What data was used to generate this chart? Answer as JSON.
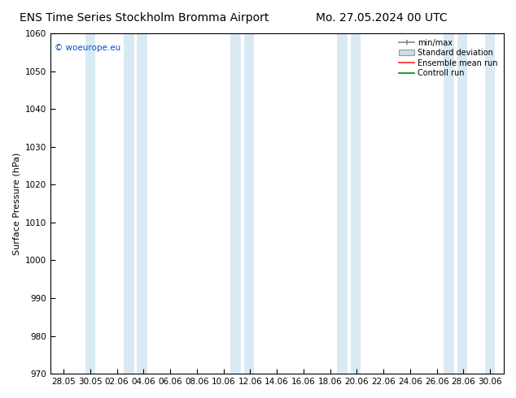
{
  "title_left": "ENS Time Series Stockholm Bromma Airport",
  "title_right": "Mo. 27.05.2024 00 UTC",
  "ylabel": "Surface Pressure (hPa)",
  "ylim": [
    970,
    1060
  ],
  "yticks": [
    970,
    980,
    990,
    1000,
    1010,
    1020,
    1030,
    1040,
    1050,
    1060
  ],
  "xtick_labels": [
    "28.05",
    "30.05",
    "02.06",
    "04.06",
    "06.06",
    "08.06",
    "10.06",
    "12.06",
    "14.06",
    "16.06",
    "18.06",
    "20.06",
    "22.06",
    "24.06",
    "26.06",
    "28.06",
    "30.06"
  ],
  "background_color": "#ffffff",
  "band_color": "#daeaf5",
  "watermark": "© woeurope.eu",
  "legend_entries": [
    "min/max",
    "Standard deviation",
    "Ensemble mean run",
    "Controll run"
  ],
  "title_fontsize": 10,
  "tick_fontsize": 7.5,
  "ylabel_fontsize": 8
}
